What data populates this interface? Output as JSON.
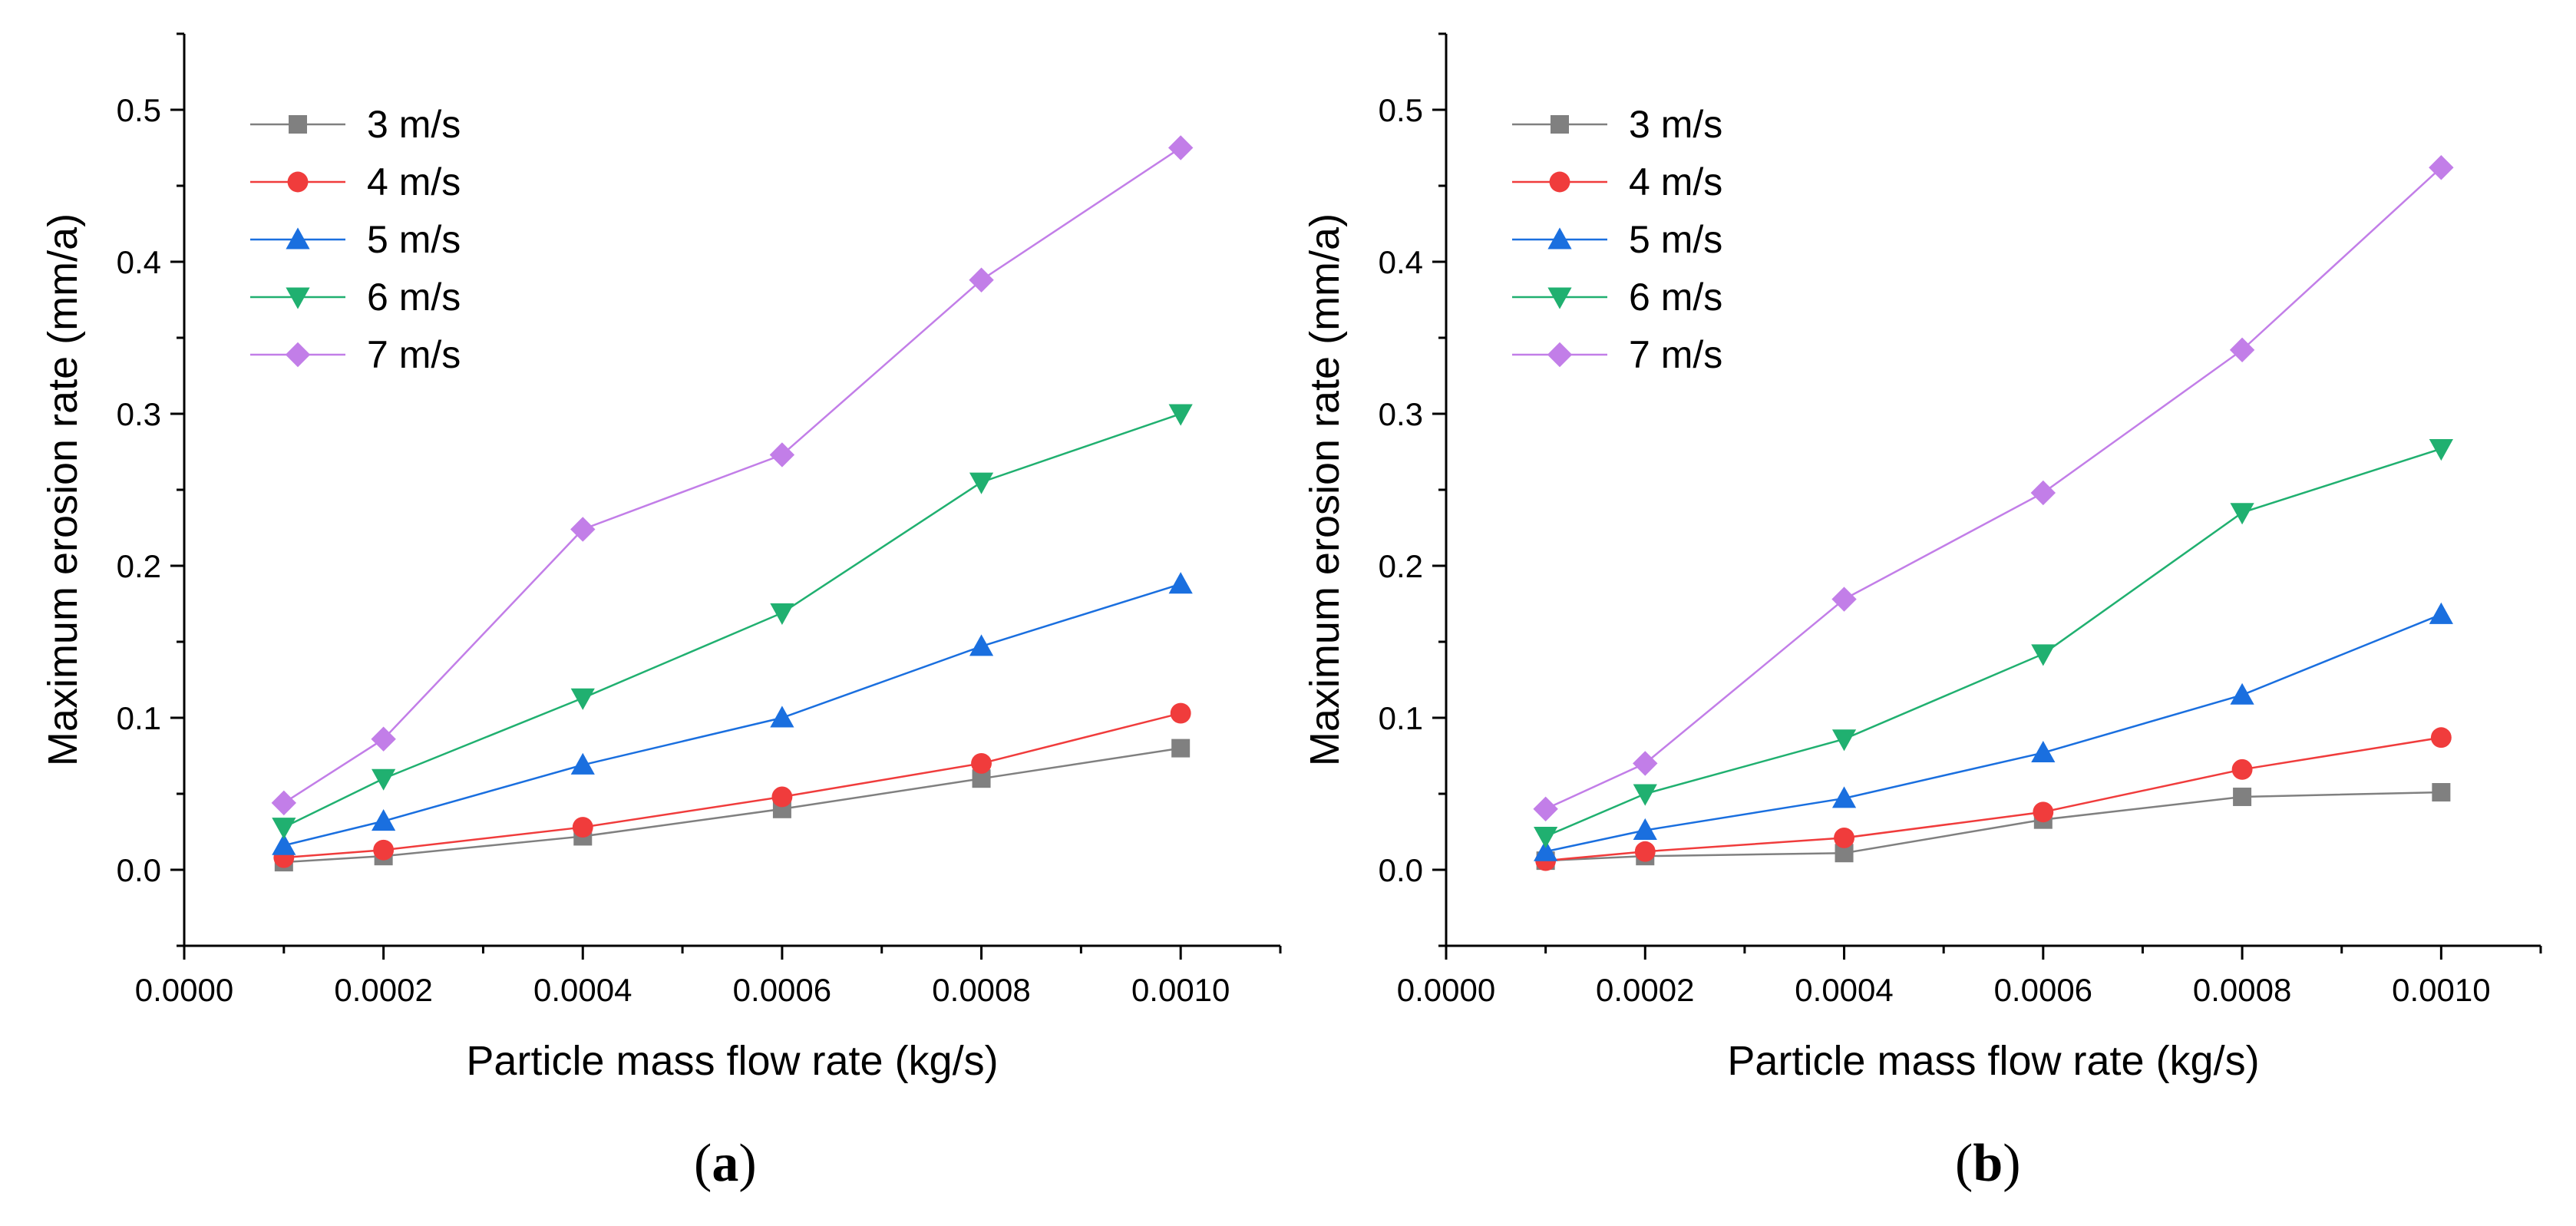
{
  "chart_data": [
    {
      "type": "line",
      "panel_label": "a",
      "xlabel": "Particle mass flow rate (kg/s)",
      "ylabel": "Maximum erosion rate (mm/a)",
      "xlim": [
        0,
        0.0011
      ],
      "ylim": [
        -0.05,
        0.55
      ],
      "xticks": [
        "0.0000",
        "0.0002",
        "0.0004",
        "0.0006",
        "0.0008",
        "0.0010"
      ],
      "yticks": [
        "0.0",
        "0.1",
        "0.2",
        "0.3",
        "0.4",
        "0.5"
      ],
      "legend_position": "top-left",
      "grid": false,
      "x": [
        0.0001,
        0.0002,
        0.0004,
        0.0006,
        0.0008,
        0.001
      ],
      "series": [
        {
          "name": "3 m/s",
          "marker": "square",
          "color": "#808080",
          "values": [
            0.005,
            0.009,
            0.022,
            0.04,
            0.06,
            0.08
          ]
        },
        {
          "name": "4 m/s",
          "marker": "circle",
          "color": "#f03c3c",
          "values": [
            0.008,
            0.013,
            0.028,
            0.048,
            0.07,
            0.103
          ]
        },
        {
          "name": "5 m/s",
          "marker": "triangle-up",
          "color": "#1a6fdf",
          "values": [
            0.016,
            0.032,
            0.069,
            0.1,
            0.147,
            0.188
          ]
        },
        {
          "name": "6 m/s",
          "marker": "triangle-down",
          "color": "#20b070",
          "values": [
            0.028,
            0.06,
            0.113,
            0.169,
            0.255,
            0.3
          ]
        },
        {
          "name": "7 m/s",
          "marker": "diamond",
          "color": "#c27ee8",
          "values": [
            0.044,
            0.086,
            0.224,
            0.273,
            0.388,
            0.475
          ]
        }
      ]
    },
    {
      "type": "line",
      "panel_label": "b",
      "xlabel": "Particle mass flow rate (kg/s)",
      "ylabel": "Maximum erosion rate (mm/a)",
      "xlim": [
        0,
        0.0011
      ],
      "ylim": [
        -0.05,
        0.55
      ],
      "xticks": [
        "0.0000",
        "0.0002",
        "0.0004",
        "0.0006",
        "0.0008",
        "0.0010"
      ],
      "yticks": [
        "0.0",
        "0.1",
        "0.2",
        "0.3",
        "0.4",
        "0.5"
      ],
      "legend_position": "top-left",
      "grid": false,
      "x": [
        0.0001,
        0.0002,
        0.0004,
        0.0006,
        0.0008,
        0.001
      ],
      "series": [
        {
          "name": "3 m/s",
          "marker": "square",
          "color": "#808080",
          "values": [
            0.006,
            0.009,
            0.011,
            0.033,
            0.048,
            0.051
          ]
        },
        {
          "name": "4 m/s",
          "marker": "circle",
          "color": "#f03c3c",
          "values": [
            0.006,
            0.012,
            0.021,
            0.038,
            0.066,
            0.087
          ]
        },
        {
          "name": "5 m/s",
          "marker": "triangle-up",
          "color": "#1a6fdf",
          "values": [
            0.012,
            0.026,
            0.047,
            0.077,
            0.115,
            0.168
          ]
        },
        {
          "name": "6 m/s",
          "marker": "triangle-down",
          "color": "#20b070",
          "values": [
            0.022,
            0.05,
            0.086,
            0.142,
            0.235,
            0.277
          ]
        },
        {
          "name": "7 m/s",
          "marker": "diamond",
          "color": "#c27ee8",
          "values": [
            0.04,
            0.07,
            0.178,
            0.248,
            0.342,
            0.462
          ]
        }
      ]
    }
  ]
}
